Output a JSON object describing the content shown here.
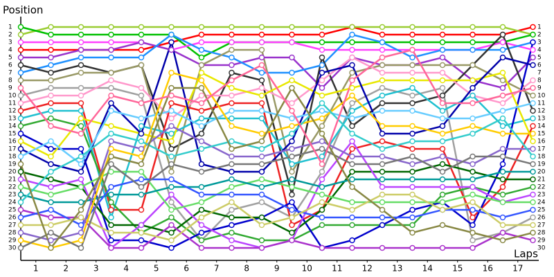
{
  "chart_data": {
    "type": "line",
    "y_label": "Position",
    "x_label": "Laps",
    "x": [
      0,
      1,
      2,
      3,
      4,
      5,
      6,
      7,
      8,
      9,
      10,
      11,
      12,
      13,
      14,
      15,
      16,
      17
    ],
    "xlim": [
      0,
      17
    ],
    "xticks": [
      {
        "value": 0.5,
        "label": "1"
      },
      {
        "value": 1.5,
        "label": "2"
      },
      {
        "value": 2.5,
        "label": "3"
      },
      {
        "value": 3.5,
        "label": "4"
      },
      {
        "value": 4.5,
        "label": "5"
      },
      {
        "value": 5.5,
        "label": "6"
      },
      {
        "value": 6.5,
        "label": "7"
      },
      {
        "value": 7.5,
        "label": "8"
      },
      {
        "value": 8.5,
        "label": "9"
      },
      {
        "value": 9.5,
        "label": "10"
      },
      {
        "value": 10.5,
        "label": "11"
      },
      {
        "value": 11.5,
        "label": "12"
      },
      {
        "value": 12.5,
        "label": "13"
      },
      {
        "value": 13.5,
        "label": "14"
      },
      {
        "value": 14.5,
        "label": "15"
      },
      {
        "value": 15.5,
        "label": "16"
      },
      {
        "value": 16.5,
        "label": "17"
      }
    ],
    "ylim": [
      30,
      1
    ],
    "yticks": [
      1,
      2,
      3,
      4,
      5,
      6,
      7,
      8,
      9,
      10,
      11,
      12,
      13,
      14,
      15,
      16,
      17,
      18,
      19,
      20,
      21,
      22,
      23,
      24,
      25,
      26,
      27,
      28,
      29,
      30
    ],
    "series": [
      {
        "color": "#ff0000",
        "values": [
          4,
          4,
          4,
          4,
          4,
          3,
          2,
          2,
          2,
          2,
          2,
          1,
          2,
          2,
          2,
          2,
          2,
          1
        ]
      },
      {
        "color": "#9acd32",
        "values": [
          2,
          1,
          1,
          1,
          1,
          1,
          1,
          1,
          1,
          1,
          1,
          1,
          1,
          1,
          1,
          1,
          1,
          2
        ]
      },
      {
        "color": "#00c000",
        "values": [
          1,
          2,
          2,
          2,
          2,
          2,
          5,
          3,
          3,
          3,
          3,
          3,
          3,
          3,
          3,
          3,
          3,
          2
        ]
      },
      {
        "color": "#ff40ff",
        "values": [
          3,
          3,
          3,
          3,
          3,
          4,
          3,
          3,
          3,
          3,
          4,
          4,
          4,
          4,
          4,
          4,
          3,
          4
        ]
      },
      {
        "color": "#9933cc",
        "values": [
          5,
          5,
          4,
          4,
          3,
          4,
          6,
          6,
          5,
          5,
          9,
          5,
          6,
          6,
          5,
          8,
          9,
          5
        ]
      },
      {
        "color": "#1e90ff",
        "values": [
          7,
          6,
          5,
          5,
          5,
          2,
          4,
          5,
          7,
          7,
          6,
          2,
          3,
          5,
          4,
          4,
          4,
          3
        ]
      },
      {
        "color": "#333333",
        "values": [
          6,
          7,
          6,
          7,
          6,
          17,
          15,
          7,
          8,
          23,
          5,
          14,
          11,
          11,
          10,
          6,
          2,
          12
        ]
      },
      {
        "color": "#999966",
        "values": [
          8,
          8,
          7,
          7,
          6,
          20,
          6,
          4,
          4,
          20,
          14,
          7,
          6,
          6,
          6,
          6,
          8,
          10
        ]
      },
      {
        "color": "#a0a0a0",
        "values": [
          10,
          9,
          9,
          9,
          10,
          24,
          29,
          25,
          24,
          26,
          20,
          11,
          9,
          10,
          9,
          29,
          28,
          26
        ]
      },
      {
        "color": "#ff99cc",
        "values": [
          11,
          10,
          10,
          8,
          9,
          13,
          10,
          10,
          9,
          11,
          8,
          5,
          7,
          7,
          7,
          10,
          11,
          8
        ]
      },
      {
        "color": "#ee2222",
        "values": [
          12,
          11,
          11,
          25,
          25,
          11,
          12,
          11,
          11,
          27,
          25,
          17,
          16,
          17,
          17,
          26,
          22,
          14
        ]
      },
      {
        "color": "#20c0d0",
        "values": [
          13,
          12,
          12,
          26,
          14,
          15,
          13,
          13,
          13,
          19,
          18,
          12,
          10,
          9,
          12,
          10,
          14,
          13
        ]
      },
      {
        "color": "#33aa33",
        "values": [
          14,
          13,
          14,
          24,
          28,
          26,
          29,
          28,
          29,
          29,
          27,
          27,
          27,
          27,
          23,
          22,
          23,
          22
        ]
      },
      {
        "color": "#0000cc",
        "values": [
          15,
          17,
          17,
          29,
          29,
          30,
          28,
          27,
          26,
          24,
          30,
          29,
          27,
          25,
          24,
          27,
          19,
          3
        ]
      },
      {
        "color": "#e8e800",
        "values": [
          16,
          18,
          13,
          14,
          15,
          16,
          7,
          9,
          10,
          8,
          10,
          9,
          8,
          8,
          8,
          8,
          7,
          16
        ]
      },
      {
        "color": "#0000aa",
        "values": [
          17,
          19,
          20,
          11,
          15,
          3,
          19,
          20,
          20,
          16,
          7,
          6,
          15,
          15,
          14,
          9,
          5,
          6
        ]
      },
      {
        "color": "#66ccff",
        "values": [
          18,
          16,
          19,
          12,
          13,
          12,
          14,
          12,
          12,
          13,
          12,
          13,
          12,
          12,
          13,
          13,
          12,
          11
        ]
      },
      {
        "color": "#006600",
        "values": [
          20,
          21,
          22,
          27,
          27,
          28,
          25,
          26,
          26,
          28,
          25,
          20,
          20,
          20,
          19,
          20,
          21,
          21
        ]
      },
      {
        "color": "#bb44ff",
        "values": [
          21,
          22,
          21,
          30,
          27,
          23,
          27,
          29,
          30,
          29,
          21,
          16,
          22,
          22,
          22,
          22,
          24,
          23
        ]
      },
      {
        "color": "#66dd66",
        "values": [
          22,
          23,
          22,
          20,
          20,
          25,
          24,
          22,
          21,
          22,
          23,
          24,
          24,
          24,
          24,
          23,
          24,
          24
        ]
      },
      {
        "color": "#009999",
        "values": [
          23,
          24,
          24,
          23,
          23,
          22,
          22,
          21,
          22,
          21,
          22,
          21,
          21,
          21,
          21,
          21,
          20,
          20
        ]
      },
      {
        "color": "#aa33cc",
        "values": [
          25,
          26,
          26,
          30,
          30,
          27,
          30,
          30,
          30,
          29,
          30,
          30,
          30,
          30,
          30,
          30,
          28,
          29
        ]
      },
      {
        "color": "#3355ff",
        "values": [
          26,
          25,
          27,
          22,
          21,
          21,
          23,
          23,
          23,
          25,
          26,
          26,
          26,
          26,
          25,
          25,
          26,
          25
        ]
      },
      {
        "color": "#cccc66",
        "values": [
          27,
          27,
          26,
          28,
          28,
          29,
          26,
          24,
          27,
          26,
          24,
          25,
          23,
          23,
          25,
          24,
          27,
          27
        ]
      },
      {
        "color": "#8866cc",
        "values": [
          28,
          29,
          28,
          16,
          17,
          14,
          16,
          18,
          18,
          17,
          16,
          18,
          18,
          19,
          18,
          19,
          17,
          17
        ]
      },
      {
        "color": "#ffcc00",
        "values": [
          29,
          30,
          29,
          17,
          18,
          7,
          8,
          14,
          15,
          14,
          13,
          10,
          14,
          14,
          15,
          14,
          15,
          15
        ]
      },
      {
        "color": "#777777",
        "values": [
          30,
          28,
          30,
          19,
          22,
          19,
          20,
          19,
          19,
          18,
          17,
          19,
          19,
          18,
          20,
          18,
          18,
          19
        ]
      },
      {
        "color": "#33cccc",
        "values": [
          24,
          20,
          18,
          15,
          16,
          18,
          17,
          16,
          17,
          15,
          11,
          15,
          17,
          16,
          16,
          15,
          13,
          18
        ]
      },
      {
        "color": "#888844",
        "values": [
          19,
          30,
          25,
          18,
          19,
          9,
          9,
          17,
          16,
          9,
          15,
          22,
          25,
          28,
          27,
          28,
          29,
          28
        ]
      },
      {
        "color": "#ff6699",
        "values": [
          9,
          14,
          15,
          10,
          11,
          10,
          11,
          8,
          6,
          12,
          19,
          8,
          5,
          4,
          11,
          11,
          10,
          9
        ]
      }
    ]
  }
}
